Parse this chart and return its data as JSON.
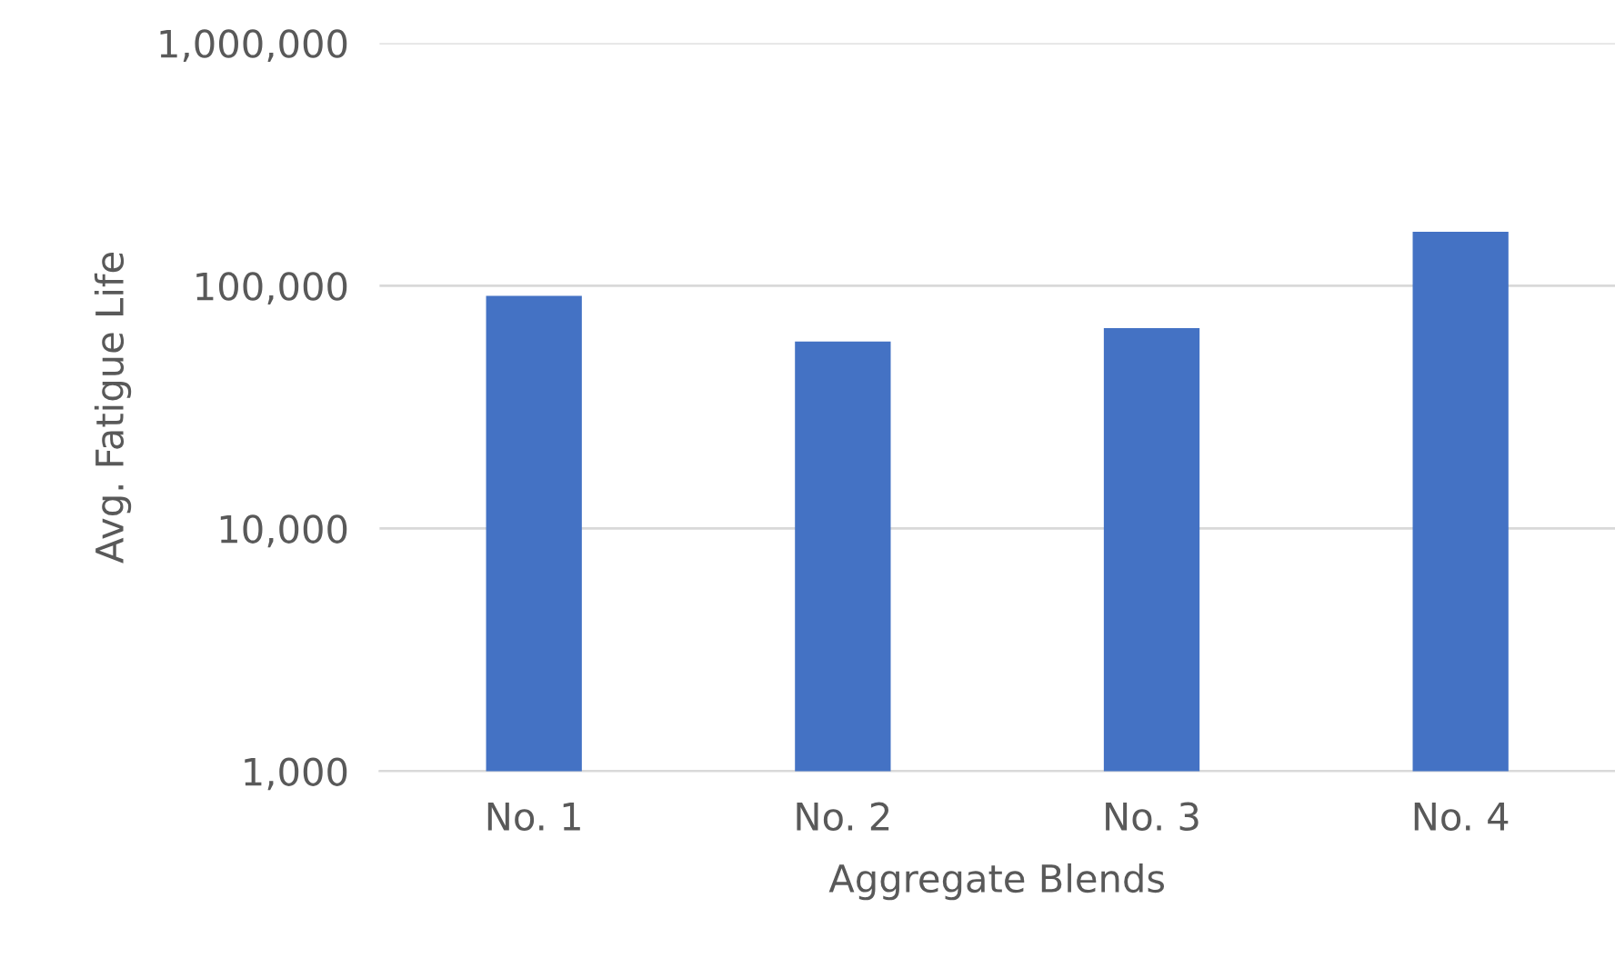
{
  "chart_data": {
    "type": "bar",
    "xlabel": "Aggregate Blends",
    "ylabel": "Avg. Fatigue Life",
    "categories": [
      "No. 1",
      "No. 2",
      "No. 3",
      "No. 4"
    ],
    "values": [
      91000,
      59000,
      67000,
      167000
    ],
    "color": "#4472c4",
    "log": true,
    "ylim": [
      1000,
      1000000
    ],
    "yticks": [
      {
        "value": 1000,
        "label": "1,000"
      },
      {
        "value": 10000,
        "label": "10,000"
      },
      {
        "value": 100000,
        "label": "100,000"
      },
      {
        "value": 1000000,
        "label": "1,000,000"
      }
    ],
    "grid": "y",
    "legend": false
  }
}
